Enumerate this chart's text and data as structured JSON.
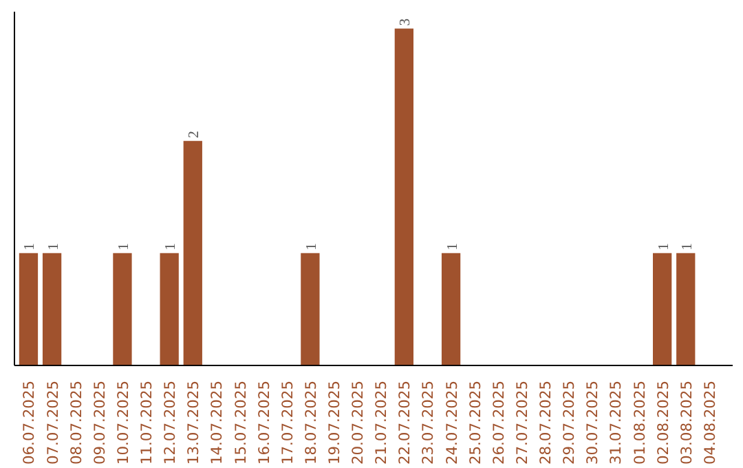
{
  "chart_data": {
    "type": "bar",
    "categories": [
      "06.07.2025",
      "07.07.2025",
      "08.07.2025",
      "09.07.2025",
      "10.07.2025",
      "11.07.2025",
      "12.07.2025",
      "13.07.2025",
      "14.07.2025",
      "15.07.2025",
      "16.07.2025",
      "17.07.2025",
      "18.07.2025",
      "19.07.2025",
      "20.07.2025",
      "21.07.2025",
      "22.07.2025",
      "23.07.2025",
      "24.07.2025",
      "25.07.2025",
      "26.07.2025",
      "27.07.2025",
      "28.07.2025",
      "29.07.2025",
      "30.07.2025",
      "31.07.2025",
      "01.08.2025",
      "02.08.2025",
      "03.08.2025",
      "04.08.2025"
    ],
    "values": [
      1,
      1,
      0,
      0,
      1,
      0,
      1,
      2,
      0,
      0,
      0,
      0,
      1,
      0,
      0,
      0,
      3,
      0,
      1,
      0,
      0,
      0,
      0,
      0,
      0,
      0,
      0,
      1,
      1,
      0
    ],
    "value_labels": [
      "1",
      "1",
      null,
      null,
      "1",
      null,
      "1",
      "2",
      null,
      null,
      null,
      null,
      "1",
      null,
      null,
      null,
      "3",
      null,
      "1",
      null,
      null,
      null,
      null,
      null,
      null,
      null,
      null,
      "1",
      "1",
      null
    ],
    "color": "#a0522d"
  }
}
